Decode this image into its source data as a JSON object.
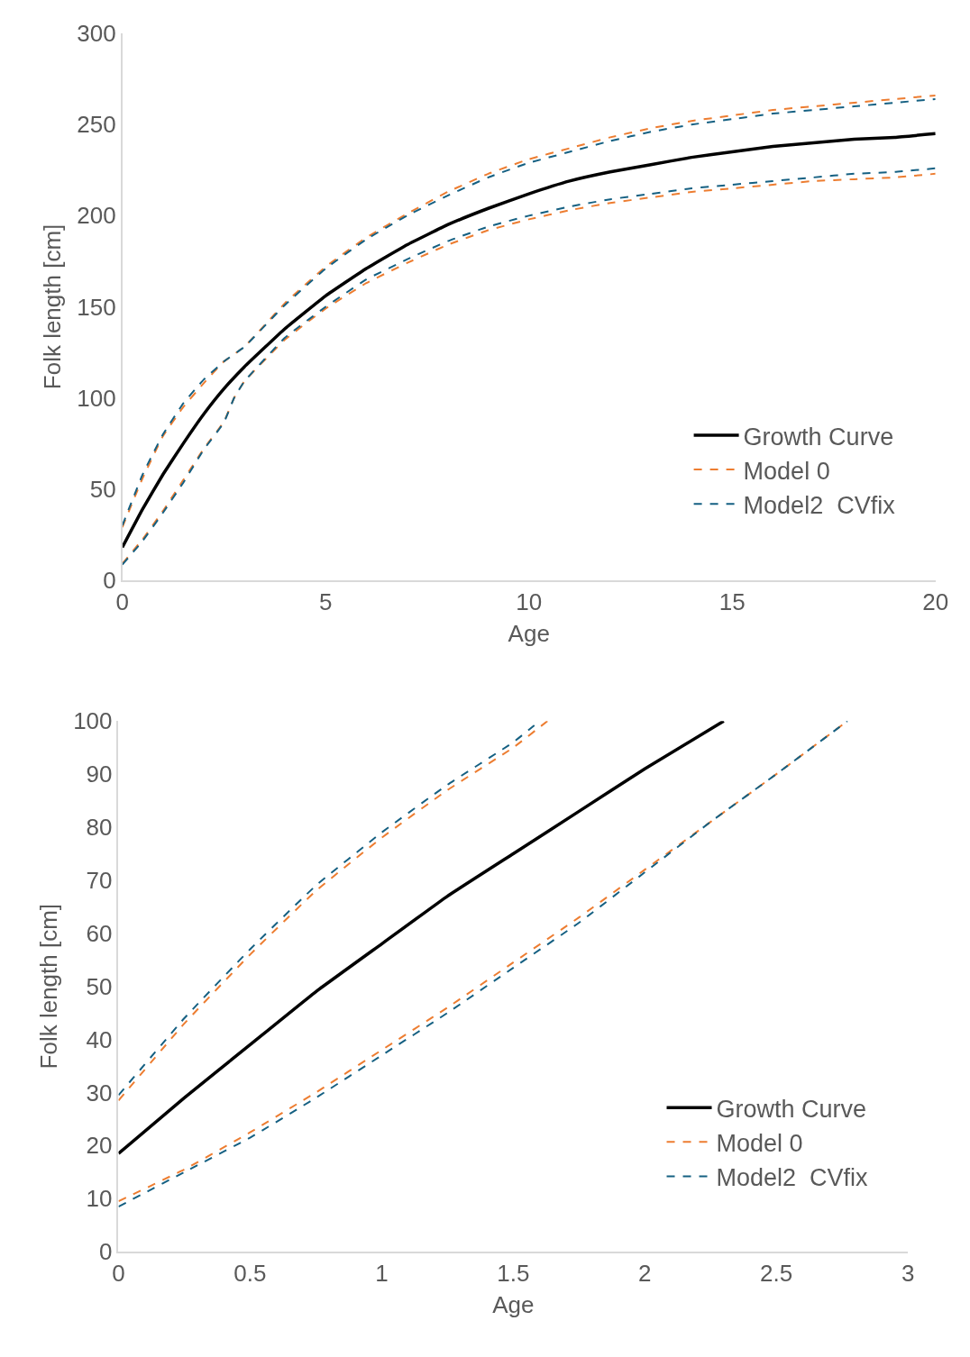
{
  "chart_data": [
    {
      "type": "line",
      "xlabel": "Age",
      "ylabel": "Folk length [cm]",
      "xlim": [
        0,
        20
      ],
      "xticks": [
        0,
        5,
        10,
        15,
        20
      ],
      "ylim": [
        0,
        300
      ],
      "yticks": [
        0,
        50,
        100,
        150,
        200,
        250,
        300
      ],
      "legend": "bottom right",
      "marker": "none",
      "series": [
        {
          "name": "Growth Curve",
          "color": "#000000",
          "line_style": "solid",
          "x": [
            0,
            0.5,
            1,
            1.5,
            2,
            2.5,
            3,
            4,
            5,
            6,
            7,
            8,
            9,
            10,
            11,
            12,
            13,
            14,
            15,
            16,
            17,
            18,
            19,
            20
          ],
          "values": [
            18,
            39,
            58,
            75,
            91,
            105,
            117,
            138,
            156,
            171,
            184,
            195,
            204,
            212,
            219,
            224,
            228,
            232,
            235,
            238,
            240,
            242,
            243,
            245
          ]
        },
        {
          "name": "Model 0",
          "color": "#ed7d31",
          "line_style": "dashed",
          "x": [
            0,
            0.5,
            1,
            1.5,
            2,
            2.5,
            3,
            4,
            5,
            6,
            7,
            8,
            9,
            10,
            11,
            12,
            13,
            14,
            15,
            16,
            17,
            18,
            19,
            20
          ],
          "values": [
            29,
            56,
            79,
            95,
            108,
            120,
            128,
            152,
            172,
            188,
            201,
            213,
            223,
            231,
            237,
            243,
            248,
            252,
            255,
            258,
            260,
            262,
            264,
            266
          ]
        },
        {
          "name": null,
          "color": "#ed7d31",
          "line_style": "dashed",
          "x": [
            0,
            0.5,
            1,
            1.5,
            2,
            2.5,
            2.75,
            3,
            4,
            5,
            6,
            7,
            8,
            9,
            10,
            11,
            12,
            13,
            14,
            15,
            16,
            17,
            18,
            19,
            20
          ],
          "values": [
            9,
            22.5,
            38,
            55,
            72,
            87,
            100,
            109,
            132,
            149,
            163,
            174,
            184,
            192,
            198,
            203,
            207,
            210,
            213,
            215,
            217,
            219,
            220,
            221,
            223
          ]
        },
        {
          "name": "Model2  CVfix",
          "color": "#156082",
          "line_style": "dashed",
          "x": [
            0,
            0.5,
            1,
            1.5,
            2,
            2.5,
            3,
            4,
            5,
            6,
            7,
            8,
            9,
            10,
            11,
            12,
            13,
            14,
            15,
            16,
            17,
            18,
            19,
            20
          ],
          "values": [
            30,
            58,
            80,
            97,
            110,
            120,
            128,
            151,
            171,
            187,
            200,
            211,
            221,
            229,
            235,
            241,
            246,
            250,
            253,
            256,
            258,
            260,
            262,
            264
          ]
        },
        {
          "name": null,
          "color": "#156082",
          "line_style": "dashed",
          "x": [
            0,
            0.5,
            1,
            1.5,
            2,
            2.5,
            2.75,
            3,
            4,
            5,
            6,
            7,
            8,
            9,
            10,
            11,
            12,
            13,
            14,
            15,
            16,
            17,
            18,
            19,
            20
          ],
          "values": [
            8.5,
            21.5,
            37,
            53.5,
            71.5,
            86.5,
            100,
            109,
            133,
            150,
            165,
            176,
            186,
            194,
            200,
            205,
            209,
            212,
            215,
            217,
            219,
            221,
            223,
            224,
            226
          ]
        }
      ]
    },
    {
      "type": "line",
      "xlabel": "Age",
      "ylabel": "Folk length [cm]",
      "xlim": [
        0,
        3
      ],
      "xticks": [
        0,
        0.5,
        1,
        1.5,
        2,
        2.5,
        3
      ],
      "ylim": [
        0,
        100
      ],
      "yticks": [
        0,
        10,
        20,
        30,
        40,
        50,
        60,
        70,
        80,
        90,
        100
      ],
      "legend": "bottom right",
      "marker": "none",
      "series": [
        {
          "name": "Growth Curve",
          "color": "#000000",
          "line_style": "solid",
          "x": [
            0,
            0.25,
            0.5,
            0.75,
            1,
            1.25,
            1.5,
            1.75,
            2,
            2.3
          ],
          "values": [
            18.5,
            29,
            39,
            49,
            58,
            67,
            75,
            83,
            91,
            100
          ]
        },
        {
          "name": "Model 0",
          "color": "#ed7d31",
          "line_style": "dashed",
          "x": [
            0,
            0.25,
            0.5,
            0.75,
            1,
            1.25,
            1.5,
            1.63
          ],
          "values": [
            28.5,
            43,
            56,
            68,
            78,
            87,
            95,
            100
          ]
        },
        {
          "name": null,
          "color": "#ed7d31",
          "line_style": "dashed",
          "x": [
            0,
            0.25,
            0.5,
            0.75,
            1,
            1.25,
            1.5,
            1.75,
            2,
            2.25,
            2.5,
            2.77
          ],
          "values": [
            9.5,
            15.5,
            22.5,
            30,
            38,
            46,
            54.5,
            63,
            72,
            81,
            90,
            100
          ]
        },
        {
          "name": "Model2  CVfix",
          "color": "#156082",
          "line_style": "dashed",
          "x": [
            0,
            0.25,
            0.5,
            0.75,
            1,
            1.25,
            1.5,
            1.6
          ],
          "values": [
            29.5,
            44,
            57,
            69,
            79,
            88,
            96,
            100
          ]
        },
        {
          "name": null,
          "color": "#156082",
          "line_style": "dashed",
          "x": [
            0,
            0.25,
            0.5,
            0.75,
            1,
            1.25,
            1.5,
            1.75,
            2,
            2.25,
            2.5,
            2.77
          ],
          "values": [
            8.5,
            15,
            21.5,
            29,
            37,
            45,
            53.5,
            62,
            71.5,
            81,
            90,
            100
          ]
        }
      ]
    }
  ]
}
